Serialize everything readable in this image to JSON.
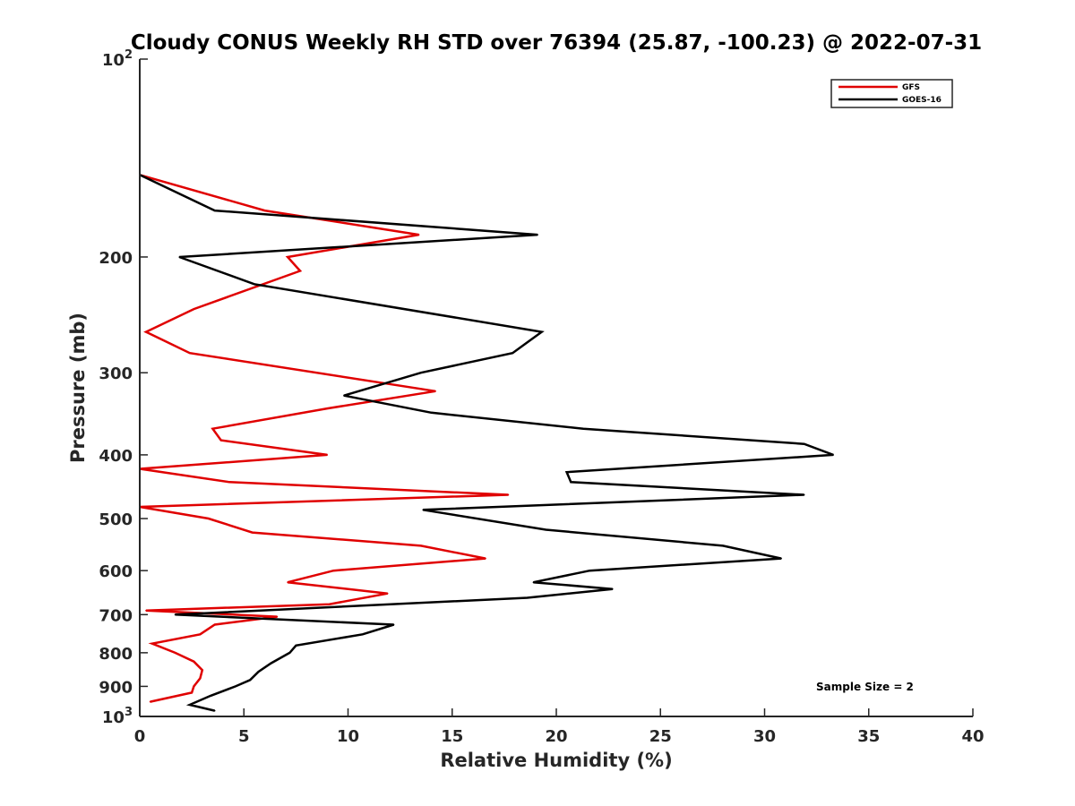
{
  "chart_data": {
    "type": "line",
    "title": "Cloudy CONUS Weekly RH STD over 76394 (25.87, -100.23) @ 2022-07-31",
    "xlabel": "Relative Humidity (%)",
    "ylabel": "Pressure (mb)",
    "xlim": [
      0,
      40
    ],
    "ylim": [
      100,
      1000
    ],
    "y_scale": "log",
    "y_reversed": true,
    "x_ticks": [
      0,
      5,
      10,
      15,
      20,
      25,
      30,
      35,
      40
    ],
    "y_ticks": [
      {
        "value": 100,
        "label": "10",
        "exp": "2"
      },
      {
        "value": 200,
        "label": "200"
      },
      {
        "value": 300,
        "label": "300"
      },
      {
        "value": 400,
        "label": "400"
      },
      {
        "value": 500,
        "label": "500"
      },
      {
        "value": 600,
        "label": "600"
      },
      {
        "value": 700,
        "label": "700"
      },
      {
        "value": 800,
        "label": "800"
      },
      {
        "value": 900,
        "label": "900"
      },
      {
        "value": 1000,
        "label": "10",
        "exp": "3"
      }
    ],
    "grid": false,
    "legend_position": "top-right",
    "annotation": "Sample Size = 2",
    "series": [
      {
        "name": "GFS",
        "color": "#e00000",
        "points": [
          [
            0.0,
            150
          ],
          [
            6.0,
            170
          ],
          [
            13.4,
            185
          ],
          [
            7.1,
            200
          ],
          [
            7.7,
            210
          ],
          [
            2.6,
            240
          ],
          [
            0.3,
            260
          ],
          [
            2.4,
            280
          ],
          [
            14.2,
            320
          ],
          [
            9.0,
            340
          ],
          [
            3.5,
            365
          ],
          [
            3.9,
            380
          ],
          [
            9.0,
            400
          ],
          [
            0.0,
            420
          ],
          [
            4.3,
            440
          ],
          [
            17.7,
            460
          ],
          [
            0.0,
            480
          ],
          [
            3.3,
            500
          ],
          [
            5.4,
            525
          ],
          [
            13.5,
            550
          ],
          [
            16.6,
            575
          ],
          [
            9.3,
            600
          ],
          [
            7.1,
            625
          ],
          [
            11.9,
            650
          ],
          [
            9.1,
            675
          ],
          [
            0.3,
            690
          ],
          [
            6.6,
            705
          ],
          [
            3.6,
            725
          ],
          [
            2.9,
            750
          ],
          [
            0.6,
            775
          ],
          [
            1.7,
            800
          ],
          [
            2.6,
            825
          ],
          [
            3.0,
            850
          ],
          [
            2.9,
            875
          ],
          [
            2.6,
            900
          ],
          [
            2.5,
            920
          ],
          [
            0.5,
            950
          ]
        ]
      },
      {
        "name": "GOES-16",
        "color": "#000000",
        "points": [
          [
            0.0,
            150
          ],
          [
            3.6,
            170
          ],
          [
            19.1,
            185
          ],
          [
            1.9,
            200
          ],
          [
            5.5,
            220
          ],
          [
            19.3,
            260
          ],
          [
            17.9,
            280
          ],
          [
            13.5,
            300
          ],
          [
            9.8,
            325
          ],
          [
            14.0,
            345
          ],
          [
            21.3,
            365
          ],
          [
            31.9,
            385
          ],
          [
            33.3,
            400
          ],
          [
            20.5,
            425
          ],
          [
            20.7,
            440
          ],
          [
            31.9,
            460
          ],
          [
            13.6,
            485
          ],
          [
            19.5,
            520
          ],
          [
            28.0,
            550
          ],
          [
            30.8,
            575
          ],
          [
            21.6,
            600
          ],
          [
            18.9,
            625
          ],
          [
            22.7,
            640
          ],
          [
            18.6,
            660
          ],
          [
            1.7,
            700
          ],
          [
            12.2,
            725
          ],
          [
            10.7,
            750
          ],
          [
            7.5,
            780
          ],
          [
            7.2,
            800
          ],
          [
            6.3,
            830
          ],
          [
            5.7,
            855
          ],
          [
            5.3,
            880
          ],
          [
            4.6,
            900
          ],
          [
            3.4,
            930
          ],
          [
            2.4,
            960
          ],
          [
            3.6,
            980
          ]
        ]
      }
    ]
  }
}
